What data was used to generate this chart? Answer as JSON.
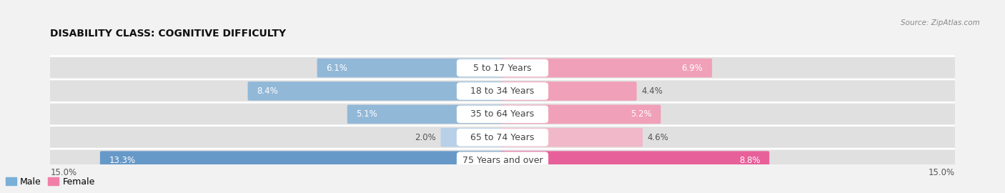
{
  "title": "DISABILITY CLASS: COGNITIVE DIFFICULTY",
  "source": "Source: ZipAtlas.com",
  "categories": [
    "5 to 17 Years",
    "18 to 34 Years",
    "35 to 64 Years",
    "65 to 74 Years",
    "75 Years and over"
  ],
  "male_values": [
    6.1,
    8.4,
    5.1,
    2.0,
    13.3
  ],
  "female_values": [
    6.9,
    4.4,
    5.2,
    4.6,
    8.8
  ],
  "max_val": 15.0,
  "male_colors": [
    "#92b8d8",
    "#92b8d8",
    "#92b8d8",
    "#b8d0e8",
    "#6699c8"
  ],
  "female_colors": [
    "#f0a0b8",
    "#f0a0b8",
    "#f0a0b8",
    "#f0b8c8",
    "#e8609a"
  ],
  "male_legend_color": "#7ab0d8",
  "female_legend_color": "#f080a8",
  "bg_color": "#f2f2f2",
  "row_bg_color": "#e8e8e8",
  "title_fontsize": 10,
  "label_fontsize": 8.5,
  "cat_fontsize": 9
}
